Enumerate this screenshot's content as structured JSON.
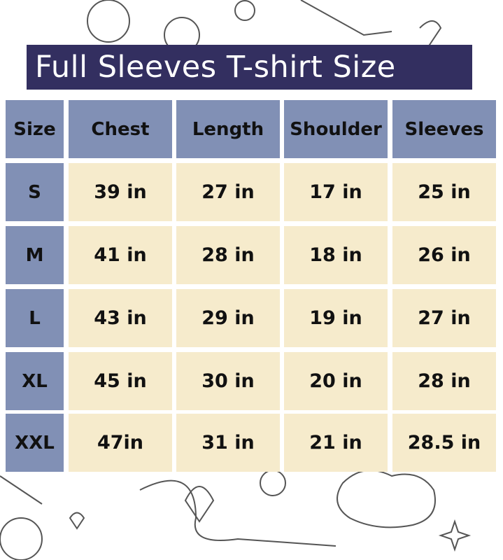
{
  "title": "Full Sleeves T-shirt Size",
  "colors": {
    "title_bg": "#332f60",
    "header_bg": "#8190b5",
    "cell_bg": "#f6ebcc"
  },
  "table": {
    "headers": [
      "Size",
      "Chest",
      "Length",
      "Shoulder",
      "Sleeves"
    ],
    "rows": [
      [
        "S",
        "39 in",
        "27 in",
        "17 in",
        "25 in"
      ],
      [
        "M",
        "41 in",
        "28 in",
        "18 in",
        "26 in"
      ],
      [
        "L",
        "43 in",
        "29 in",
        "19 in",
        "27 in"
      ],
      [
        "XL",
        "45 in",
        "30 in",
        "20 in",
        "28 in"
      ],
      [
        "XXL",
        "47in",
        "31 in",
        "21 in",
        "28.5 in"
      ]
    ]
  }
}
